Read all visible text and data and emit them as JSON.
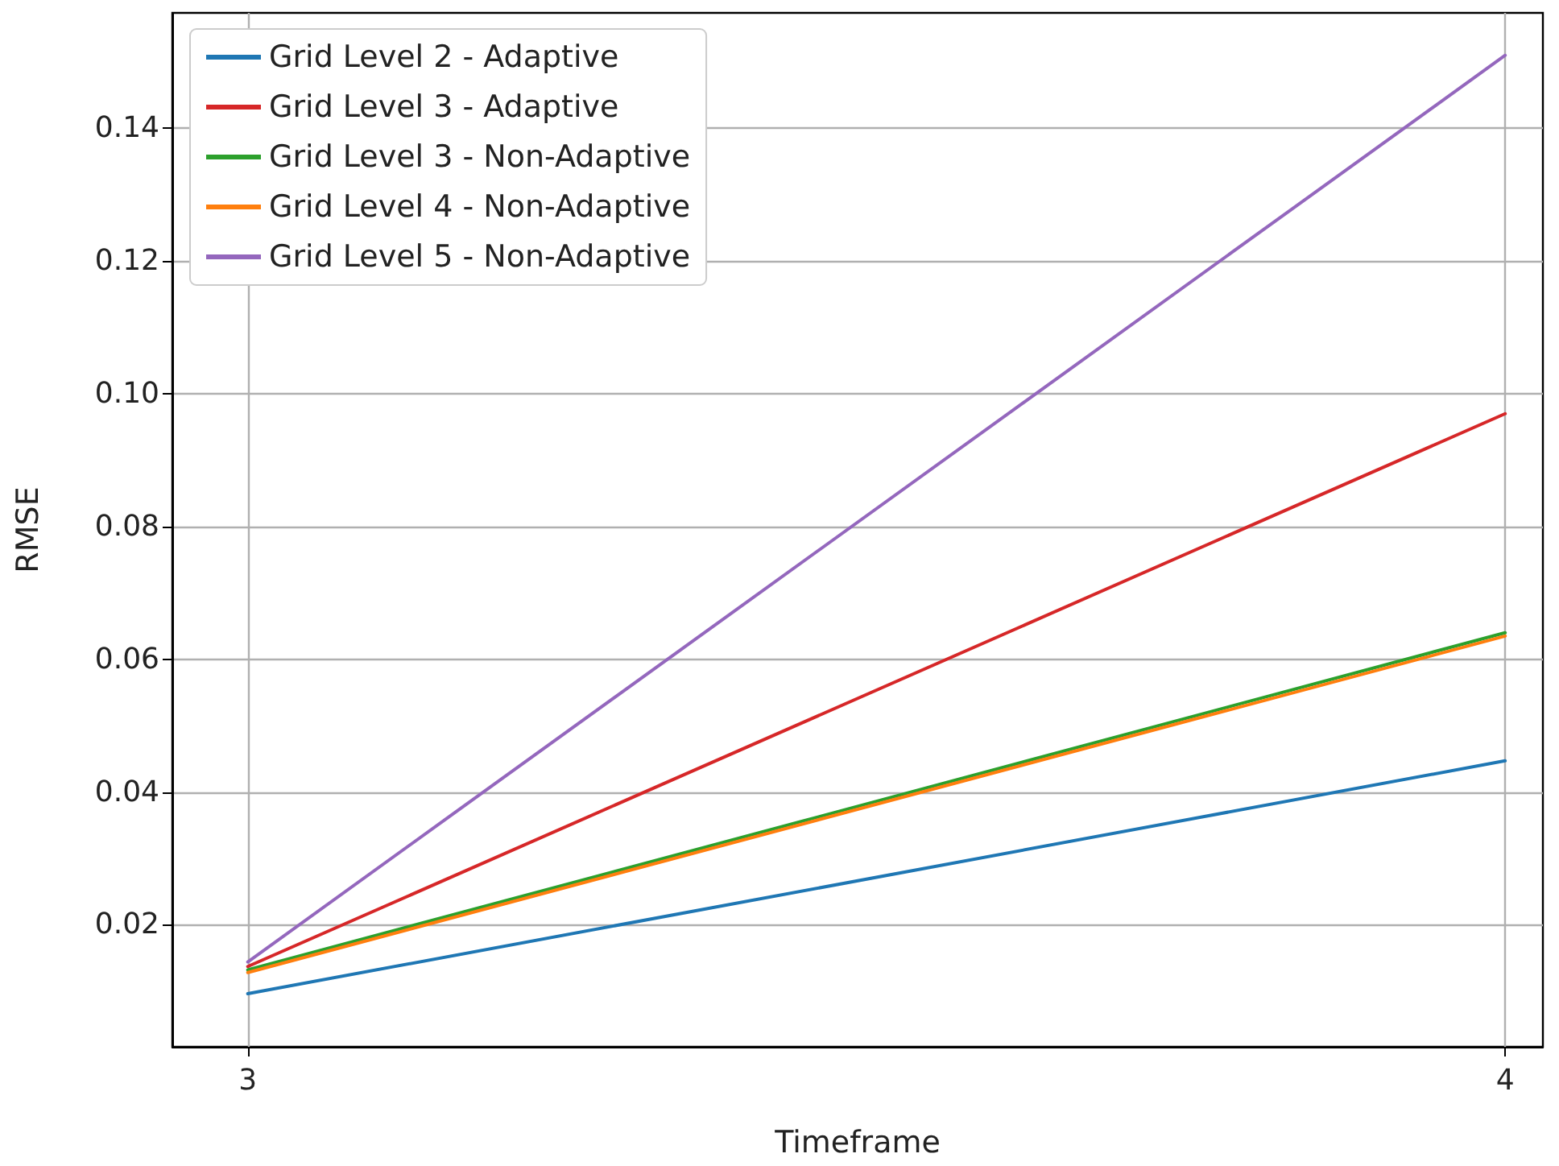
{
  "chart_data": {
    "type": "line",
    "xlabel": "Timeframe",
    "ylabel": "RMSE",
    "x": [
      3,
      4
    ],
    "series": [
      {
        "name": "Grid Level 2 - Adaptive",
        "color": "#1f77b4",
        "values": [
          0.0096,
          0.0447
        ]
      },
      {
        "name": "Grid Level 3 - Adaptive",
        "color": "#d62728",
        "values": [
          0.0137,
          0.097
        ]
      },
      {
        "name": "Grid Level 3 - Non-Adaptive",
        "color": "#2ca02c",
        "values": [
          0.0132,
          0.064
        ]
      },
      {
        "name": "Grid Level 4 - Non-Adaptive",
        "color": "#ff7f0e",
        "values": [
          0.0128,
          0.0635
        ]
      },
      {
        "name": "Grid Level 5 - Non-Adaptive",
        "color": "#9467bd",
        "values": [
          0.0144,
          0.151
        ]
      }
    ],
    "xlim": [
      2.94,
      4.03
    ],
    "xticks": [
      3,
      4
    ],
    "ylim": [
      0.0016,
      0.1574
    ],
    "yticks": [
      0.02,
      0.04,
      0.06,
      0.08,
      {
        "value": 0.1,
        "label": "0.10"
      },
      0.12,
      0.14
    ],
    "grid": true,
    "legend": "top left",
    "marker": "none",
    "line_style": "solid"
  }
}
